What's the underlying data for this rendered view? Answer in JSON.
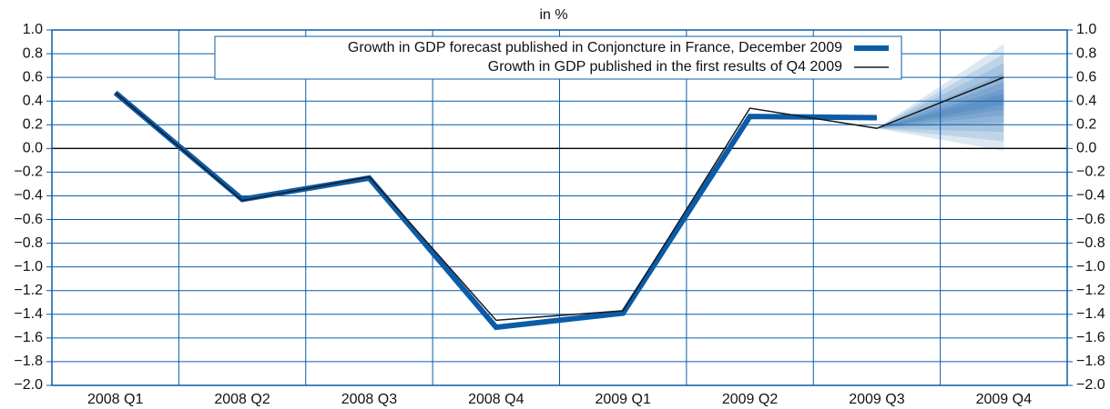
{
  "chart_data": {
    "type": "line",
    "title": "in %",
    "categories": [
      "2008 Q1",
      "2008 Q2",
      "2008 Q3",
      "2008 Q4",
      "2009 Q1",
      "2009 Q2",
      "2009 Q3",
      "2009 Q4"
    ],
    "series": [
      {
        "name": "Growth in GDP forecast published in Conjoncture in France, December 2009",
        "color": "#0b5ca8",
        "width": 6,
        "values": [
          0.47,
          -0.43,
          -0.25,
          -1.51,
          -1.39,
          0.27,
          0.26,
          null
        ]
      },
      {
        "name": "Growth in GDP published in the first results of Q4 2009",
        "color": "#1a1a1a",
        "width": 1.5,
        "values": [
          0.47,
          -0.44,
          -0.24,
          -1.45,
          -1.37,
          0.34,
          0.17,
          0.6
        ]
      }
    ],
    "fan": {
      "color": "#0b5ca8",
      "highs": [
        0.88,
        0.8,
        0.72,
        0.64,
        0.56,
        0.5,
        0.46
      ],
      "lows": [
        -0.02,
        0.06,
        0.14,
        0.22,
        0.28,
        0.33,
        0.37
      ]
    },
    "ylim": [
      -2.0,
      1.0
    ],
    "yticks": [
      {
        "value": -2.0,
        "label": "−2.0"
      },
      {
        "value": -1.8,
        "label": "−1.8"
      },
      {
        "value": -1.6,
        "label": "−1.6"
      },
      {
        "value": -1.4,
        "label": "−1.4"
      },
      {
        "value": -1.2,
        "label": "−1.2"
      },
      {
        "value": -1.0,
        "label": "−1.0"
      },
      {
        "value": -0.8,
        "label": "−0.8"
      },
      {
        "value": -0.6,
        "label": "−0.6"
      },
      {
        "value": -0.4,
        "label": "−0.4"
      },
      {
        "value": -0.2,
        "label": "−0.2"
      },
      {
        "value": 0.0,
        "label": "0.0"
      },
      {
        "value": 0.2,
        "label": "0.2"
      },
      {
        "value": 0.4,
        "label": "0.4"
      },
      {
        "value": 0.6,
        "label": "0.6"
      },
      {
        "value": 0.8,
        "label": "0.8"
      },
      {
        "value": 1.0,
        "label": "1.0"
      }
    ],
    "grid": true
  }
}
